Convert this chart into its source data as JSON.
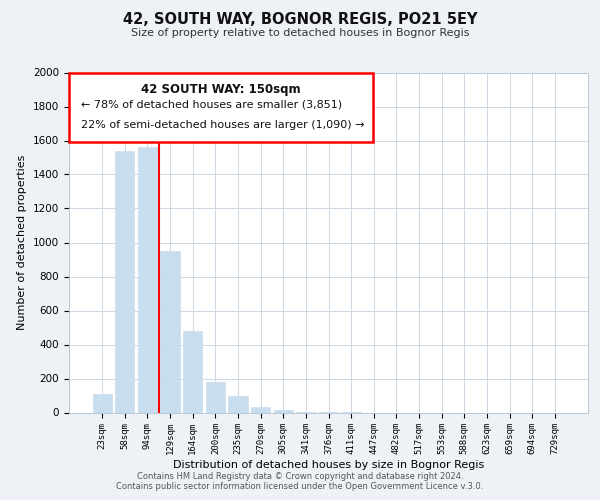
{
  "title": "42, SOUTH WAY, BOGNOR REGIS, PO21 5EY",
  "subtitle": "Size of property relative to detached houses in Bognor Regis",
  "xlabel": "Distribution of detached houses by size in Bognor Regis",
  "ylabel": "Number of detached properties",
  "bar_labels": [
    "23sqm",
    "58sqm",
    "94sqm",
    "129sqm",
    "164sqm",
    "200sqm",
    "235sqm",
    "270sqm",
    "305sqm",
    "341sqm",
    "376sqm",
    "411sqm",
    "447sqm",
    "482sqm",
    "517sqm",
    "553sqm",
    "588sqm",
    "623sqm",
    "659sqm",
    "694sqm",
    "729sqm"
  ],
  "bar_values": [
    110,
    1540,
    1560,
    950,
    480,
    180,
    95,
    35,
    12,
    4,
    2,
    1,
    0,
    0,
    0,
    0,
    0,
    0,
    0,
    0,
    0
  ],
  "bar_color": "#c8dded",
  "bar_edge_color": "#c8dded",
  "ylim": [
    0,
    2000
  ],
  "yticks": [
    0,
    200,
    400,
    600,
    800,
    1000,
    1200,
    1400,
    1600,
    1800,
    2000
  ],
  "annotation_title": "42 SOUTH WAY: 150sqm",
  "annotation_line1": "← 78% of detached houses are smaller (3,851)",
  "annotation_line2": "22% of semi-detached houses are larger (1,090) →",
  "red_line_bar_index": 3,
  "footer_line1": "Contains HM Land Registry data © Crown copyright and database right 2024.",
  "footer_line2": "Contains public sector information licensed under the Open Government Licence v.3.0.",
  "background_color": "#eef2f7",
  "plot_bg_color": "#ffffff",
  "grid_color": "#cdd8e5"
}
